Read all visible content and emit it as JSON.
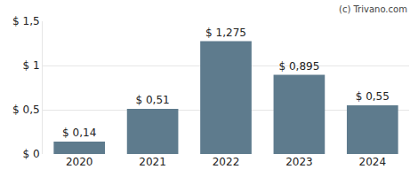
{
  "chart_data": {
    "type": "bar",
    "categories": [
      "2020",
      "2021",
      "2022",
      "2023",
      "2024"
    ],
    "values": [
      0.14,
      0.51,
      1.275,
      0.895,
      0.55
    ],
    "value_labels": [
      "$ 0,14",
      "$ 0,51",
      "$ 1,275",
      "$ 0,895",
      "$ 0,55"
    ],
    "data_labels": true,
    "color": "#5e7b8d",
    "ylim": [
      0,
      1.5
    ],
    "yticks": [
      {
        "value": 0,
        "label": "$ 0"
      },
      {
        "value": 0.5,
        "label": "$ 0,5"
      },
      {
        "value": 1,
        "label": "$ 1"
      },
      {
        "value": 1.5,
        "label": "$ 1,5"
      }
    ],
    "grid": true,
    "annotations": [
      "(c) Trivano.com"
    ]
  }
}
